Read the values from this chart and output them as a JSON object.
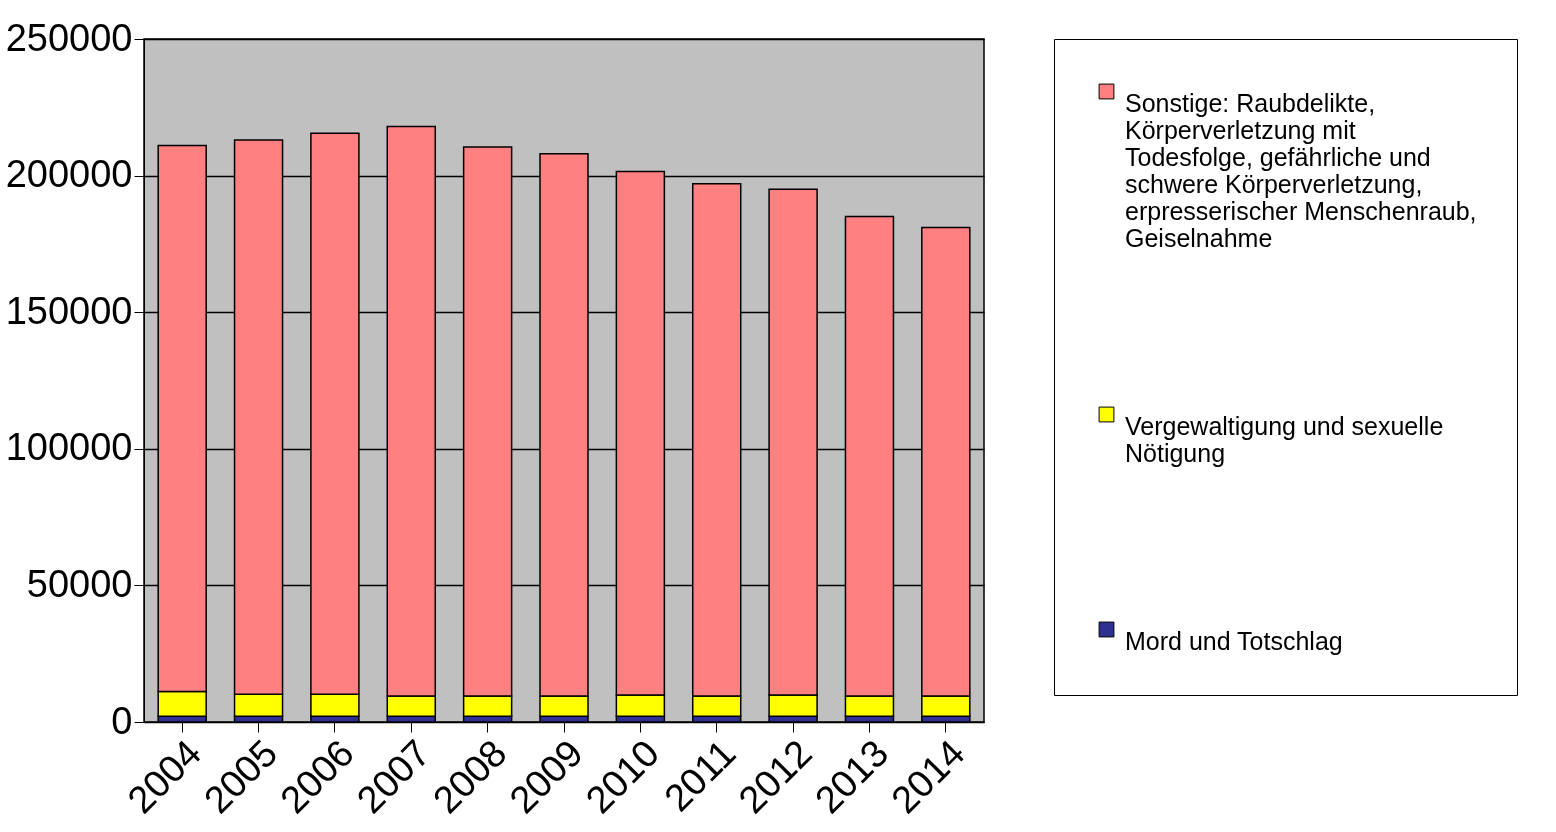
{
  "chart_data": {
    "type": "bar",
    "stacked": true,
    "categories": [
      "2004",
      "2005",
      "2006",
      "2007",
      "2008",
      "2009",
      "2010",
      "2011",
      "2012",
      "2013",
      "2014"
    ],
    "series": [
      {
        "name": "Mord und Totschlag",
        "color": "#2e3192",
        "values": [
          2100,
          2100,
          2100,
          2100,
          2100,
          2100,
          2100,
          2100,
          2100,
          2100,
          2100
        ]
      },
      {
        "name": "Vergewaltigung und sexuelle Nötigung",
        "color": "#ffff00",
        "values": [
          9100,
          8100,
          8100,
          7400,
          7400,
          7400,
          7800,
          7400,
          7800,
          7400,
          7400
        ]
      },
      {
        "name": "Sonstige: Raubdelikte, Körperverletzung mit Todesfolge, gefährliche und schwere Körperverletzung, erpresserischer Menschenraub, Geiselnahme",
        "color": "#ff8080",
        "values": [
          199800,
          202800,
          205300,
          208500,
          201000,
          198500,
          191600,
          187500,
          185100,
          175500,
          171500
        ]
      }
    ],
    "ylim": [
      0,
      250000
    ],
    "yticks": [
      0,
      50000,
      100000,
      150000,
      200000,
      250000
    ],
    "grid": "y",
    "legend": "right"
  }
}
